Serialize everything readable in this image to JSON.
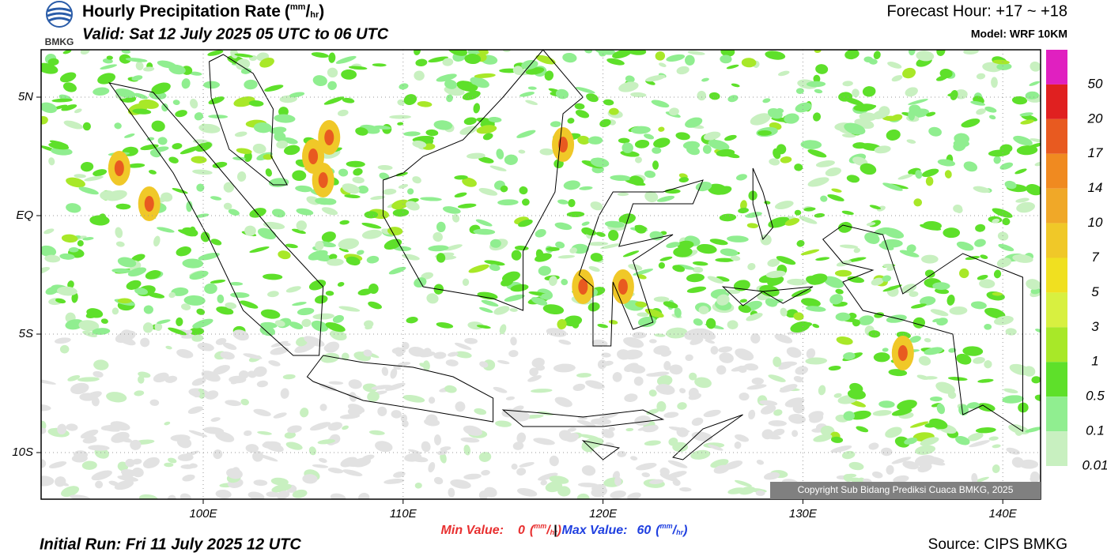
{
  "header": {
    "logo": "BMKG",
    "title": "Hourly Precipitation Rate",
    "unit": {
      "open": "(",
      "num": "mm",
      "sep": "/",
      "den": "hr",
      "close": ")"
    },
    "valid": "Valid: Sat 12 July 2025 05 UTC to 06 UTC",
    "forecast": "Forecast Hour: +17 ~ +18",
    "model": "Model: WRF 10KM"
  },
  "map": {
    "lat_labels": [
      "5N",
      "EQ",
      "5S",
      "10S"
    ],
    "lon_labels": [
      "100E",
      "110E",
      "120E",
      "130E",
      "140E"
    ],
    "copyright": "Copyright Sub Bidang Prediksi Cuaca BMKG, 2025"
  },
  "legend": {
    "labels": [
      50,
      20,
      17,
      14,
      10,
      7,
      5,
      3,
      1,
      0.5,
      0.1,
      0.01
    ],
    "colors": [
      "#e020c0",
      "#e02020",
      "#e85a20",
      "#f08a20",
      "#f0a828",
      "#f0c828",
      "#f0e020",
      "#d8f040",
      "#a8e828",
      "#5ee02a",
      "#90ee90",
      "#c8f0c0",
      "#e6e6e6"
    ]
  },
  "footer": {
    "min_label": "Min Value:",
    "min_value": 0,
    "sep": "|",
    "max_label": "Max Value:",
    "max_value": 60,
    "initial_run": "Initial Run: Fri 11 July 2025 12 UTC",
    "source": "Source: CIPS BMKG"
  }
}
